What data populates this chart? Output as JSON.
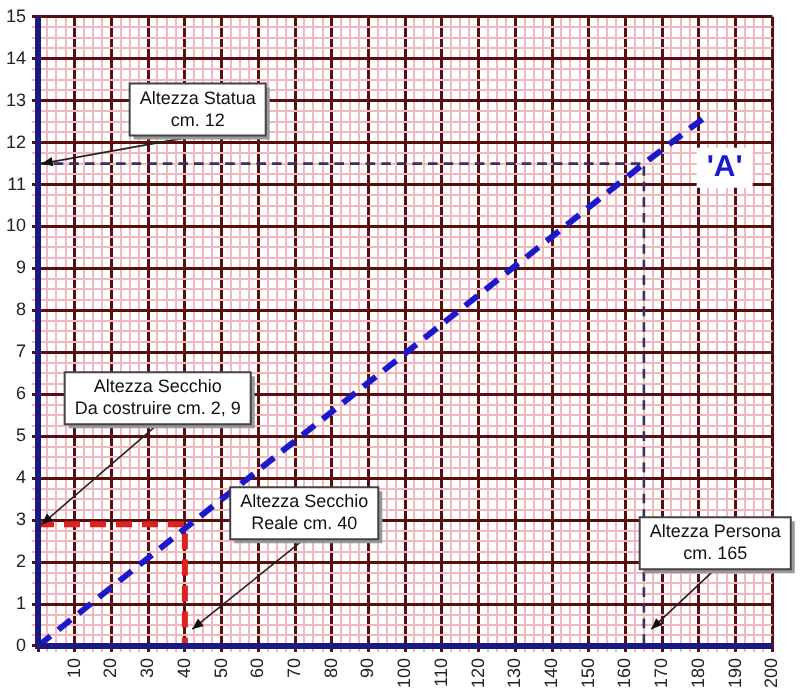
{
  "chart_data": {
    "type": "line",
    "xlim": [
      0,
      200
    ],
    "ylim": [
      0,
      15
    ],
    "xticks": [
      {
        "value": 0,
        "label": null
      },
      {
        "value": 2.5,
        "label": null
      },
      {
        "value": 5,
        "label": null
      },
      {
        "value": 7.5,
        "label": null
      },
      10,
      {
        "value": 12.5,
        "label": null
      },
      {
        "value": 15,
        "label": null
      },
      {
        "value": 17.5,
        "label": null
      },
      20,
      {
        "value": 22.5,
        "label": null
      },
      {
        "value": 25,
        "label": null
      },
      {
        "value": 27.5,
        "label": null
      },
      30,
      {
        "value": 32.5,
        "label": null
      },
      {
        "value": 35,
        "label": null
      },
      {
        "value": 37.5,
        "label": null
      },
      40,
      {
        "value": 42.5,
        "label": null
      },
      {
        "value": 45,
        "label": null
      },
      {
        "value": 47.5,
        "label": null
      },
      50,
      {
        "value": 52.5,
        "label": null
      },
      {
        "value": 55,
        "label": null
      },
      {
        "value": 57.5,
        "label": null
      },
      60,
      {
        "value": 62.5,
        "label": null
      },
      {
        "value": 65,
        "label": null
      },
      {
        "value": 67.5,
        "label": null
      },
      70,
      {
        "value": 72.5,
        "label": null
      },
      {
        "value": 75,
        "label": null
      },
      {
        "value": 77.5,
        "label": null
      },
      80,
      {
        "value": 82.5,
        "label": null
      },
      {
        "value": 85,
        "label": null
      },
      {
        "value": 87.5,
        "label": null
      },
      90,
      {
        "value": 92.5,
        "label": null
      },
      {
        "value": 95,
        "label": null
      },
      {
        "value": 97.5,
        "label": null
      },
      100,
      {
        "value": 102.5,
        "label": null
      },
      {
        "value": 105,
        "label": null
      },
      {
        "value": 107.5,
        "label": null
      },
      110,
      {
        "value": 112.5,
        "label": null
      },
      {
        "value": 115,
        "label": null
      },
      {
        "value": 117.5,
        "label": null
      },
      120,
      {
        "value": 122.5,
        "label": null
      },
      {
        "value": 125,
        "label": null
      },
      {
        "value": 127.5,
        "label": null
      },
      130,
      {
        "value": 132.5,
        "label": null
      },
      {
        "value": 135,
        "label": null
      },
      {
        "value": 137.5,
        "label": null
      },
      140,
      {
        "value": 142.5,
        "label": null
      },
      {
        "value": 145,
        "label": null
      },
      {
        "value": 147.5,
        "label": null
      },
      150,
      {
        "value": 152.5,
        "label": null
      },
      {
        "value": 155,
        "label": null
      },
      {
        "value": 157.5,
        "label": null
      },
      160,
      {
        "value": 162.5,
        "label": null
      },
      {
        "value": 165,
        "label": null
      },
      {
        "value": 167.5,
        "label": null
      },
      170,
      {
        "value": 172.5,
        "label": null
      },
      {
        "value": 175,
        "label": null
      },
      {
        "value": 177.5,
        "label": null
      },
      180,
      {
        "value": 182.5,
        "label": null
      },
      {
        "value": 185,
        "label": null
      },
      {
        "value": 187.5,
        "label": null
      },
      190,
      {
        "value": 192.5,
        "label": null
      },
      {
        "value": 195,
        "label": null
      },
      {
        "value": 197.5,
        "label": null
      },
      200
    ],
    "yticks": [
      0,
      {
        "value": 0.25,
        "label": null
      },
      {
        "value": 0.5,
        "label": null
      },
      {
        "value": 0.75,
        "label": null
      },
      1,
      {
        "value": 1.25,
        "label": null
      },
      {
        "value": 1.5,
        "label": null
      },
      {
        "value": 1.75,
        "label": null
      },
      2,
      {
        "value": 2.25,
        "label": null
      },
      {
        "value": 2.5,
        "label": null
      },
      {
        "value": 2.75,
        "label": null
      },
      3,
      {
        "value": 3.25,
        "label": null
      },
      {
        "value": 3.5,
        "label": null
      },
      {
        "value": 3.75,
        "label": null
      },
      4,
      {
        "value": 4.25,
        "label": null
      },
      {
        "value": 4.5,
        "label": null
      },
      {
        "value": 4.75,
        "label": null
      },
      5,
      {
        "value": 5.25,
        "label": null
      },
      {
        "value": 5.5,
        "label": null
      },
      {
        "value": 5.75,
        "label": null
      },
      6,
      {
        "value": 6.25,
        "label": null
      },
      {
        "value": 6.5,
        "label": null
      },
      {
        "value": 6.75,
        "label": null
      },
      7,
      {
        "value": 7.25,
        "label": null
      },
      {
        "value": 7.5,
        "label": null
      },
      {
        "value": 7.75,
        "label": null
      },
      8,
      {
        "value": 8.25,
        "label": null
      },
      {
        "value": 8.5,
        "label": null
      },
      {
        "value": 8.75,
        "label": null
      },
      9,
      {
        "value": 9.25,
        "label": null
      },
      {
        "value": 9.5,
        "label": null
      },
      {
        "value": 9.75,
        "label": null
      },
      10,
      {
        "value": 10.25,
        "label": null
      },
      {
        "value": 10.5,
        "label": null
      },
      {
        "value": 10.75,
        "label": null
      },
      11,
      {
        "value": 11.25,
        "label": null
      },
      {
        "value": 11.5,
        "label": null
      },
      {
        "value": 11.75,
        "label": null
      },
      12,
      {
        "value": 12.25,
        "label": null
      },
      {
        "value": 12.5,
        "label": null
      },
      {
        "value": 12.75,
        "label": null
      },
      13,
      {
        "value": 13.25,
        "label": null
      },
      {
        "value": 13.5,
        "label": null
      },
      {
        "value": 13.75,
        "label": null
      },
      14,
      {
        "value": 14.25,
        "label": null
      },
      {
        "value": 14.5,
        "label": null
      },
      {
        "value": 14.75,
        "label": null
      },
      15
    ],
    "grid": true,
    "marker": "none",
    "line_style": "dashed",
    "series": [
      {
        "color": "#1a1acc",
        "x": [
          0,
          40,
          165,
          183
        ],
        "values": [
          0,
          2.8,
          11.5,
          12.7
        ]
      },
      {
        "color": "#dd2222",
        "x": [
          0,
          40,
          40
        ],
        "values": [
          2.9,
          2.9,
          0
        ]
      },
      {
        "color": "#333366",
        "x": [
          0,
          165,
          165
        ],
        "values": [
          11.5,
          11.5,
          0
        ]
      }
    ],
    "annotations": [
      {
        "text": "Altezza Statua\ncm. 12",
        "x": 1,
        "y": 11.5
      },
      {
        "text": "Altezza Secchio\nDa costruire cm. 2, 9",
        "x": 1,
        "y": 2.9
      },
      {
        "text": "Altezza Secchio\nReale cm. 40",
        "x": 42,
        "y": 0.4
      },
      {
        "text": "Altezza Persona\ncm. 165",
        "x": 167,
        "y": 0.4
      },
      {
        "text": "'A'",
        "x": 187,
        "y": 11.4
      }
    ]
  }
}
